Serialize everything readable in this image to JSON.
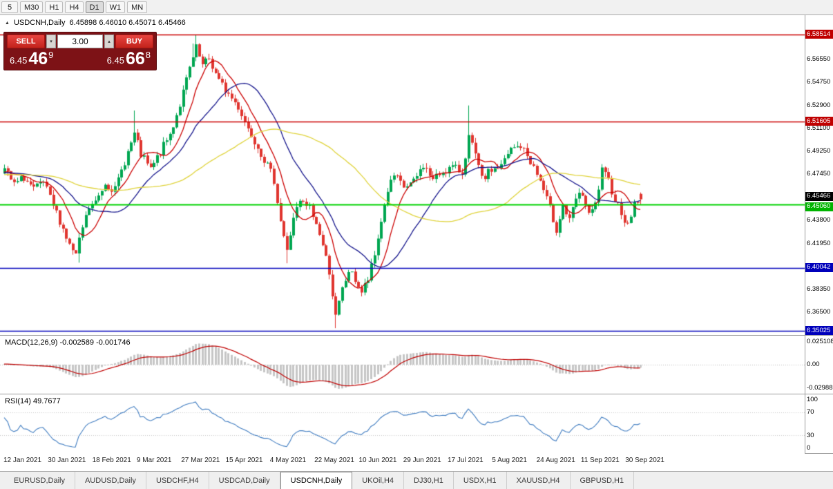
{
  "toolbar": {
    "timeframes": [
      {
        "label": "5",
        "active": false
      },
      {
        "label": "M30",
        "active": false
      },
      {
        "label": "H1",
        "active": false
      },
      {
        "label": "H4",
        "active": false
      },
      {
        "label": "D1",
        "active": true
      },
      {
        "label": "W1",
        "active": false
      },
      {
        "label": "MN",
        "active": false
      }
    ]
  },
  "chart_header": {
    "expand_icon": "▲",
    "title": "USDCNH,Daily",
    "ohlc": "6.45898 6.46010 6.45071 6.45466"
  },
  "trade_panel": {
    "sell_label": "SELL",
    "buy_label": "BUY",
    "volume": "3.00",
    "spinner_down": "▾",
    "spinner_up": "▴",
    "sell_price": {
      "prefix": "6.45",
      "big": "46",
      "sup": "9"
    },
    "buy_price": {
      "prefix": "6.45",
      "big": "66",
      "sup": "8"
    }
  },
  "price_axis": {
    "ticks": [
      {
        "label": "6.56550",
        "price": 6.5655
      },
      {
        "label": "6.54750",
        "price": 6.5475
      },
      {
        "label": "6.52900",
        "price": 6.529
      },
      {
        "label": "6.51100",
        "price": 6.511
      },
      {
        "label": "6.49250",
        "price": 6.4925
      },
      {
        "label": "6.47450",
        "price": 6.4745
      },
      {
        "label": "6.43800",
        "price": 6.438
      },
      {
        "label": "6.41950",
        "price": 6.4195
      },
      {
        "label": "6.38350",
        "price": 6.3835
      },
      {
        "label": "6.36500",
        "price": 6.365
      }
    ],
    "badges": [
      {
        "label": "6.58514",
        "price": 6.58514,
        "bg": "#c00000",
        "nudge": 0
      },
      {
        "label": "6.51605",
        "price": 6.51605,
        "bg": "#c00000",
        "nudge": 0
      },
      {
        "label": "6.45466",
        "price": 6.45466,
        "bg": "#000000",
        "nudge": -4
      },
      {
        "label": "6.45060",
        "price": 6.4506,
        "bg": "#00b400",
        "nudge": 4
      },
      {
        "label": "6.40042",
        "price": 6.40042,
        "bg": "#0000bb",
        "nudge": 0
      },
      {
        "label": "6.35025",
        "price": 6.35025,
        "bg": "#0000bb",
        "nudge": 0
      }
    ]
  },
  "hlines": [
    {
      "price": 6.58514,
      "color": "#cc0000",
      "width": 1.4
    },
    {
      "price": 6.51605,
      "color": "#cc0000",
      "width": 1.4
    },
    {
      "price": 6.4506,
      "color": "#00d400",
      "width": 2
    },
    {
      "price": 6.40042,
      "color": "#0000bb",
      "width": 1.4
    },
    {
      "price": 6.35025,
      "color": "#0000bb",
      "width": 1.4
    }
  ],
  "indicators": {
    "macd_label": "MACD(12,26,9) -0.002589 -0.001746",
    "macd_axis": [
      {
        "label": "0.025108",
        "offset": 3
      },
      {
        "label": "0.00",
        "offset": 36
      },
      {
        "label": "-0.02988",
        "offset": 70
      }
    ],
    "rsi_label": "RSI(14) 49.7677",
    "rsi_axis": [
      {
        "label": "100",
        "value": 100
      },
      {
        "label": "70",
        "value": 70
      },
      {
        "label": "30",
        "value": 30
      },
      {
        "label": "0",
        "value": 0
      }
    ],
    "rsi_levels": [
      70,
      30
    ]
  },
  "dates": [
    "12 Jan 2021",
    "30 Jan 2021",
    "18 Feb 2021",
    "9 Mar 2021",
    "27 Mar 2021",
    "15 Apr 2021",
    "4 May 2021",
    "22 May 2021",
    "10 Jun 2021",
    "29 Jun 2021",
    "17 Jul 2021",
    "5 Aug 2021",
    "24 Aug 2021",
    "11 Sep 2021",
    "30 Sep 2021"
  ],
  "tabs": [
    {
      "label": "EURUSD,Daily",
      "active": false
    },
    {
      "label": "AUDUSD,Daily",
      "active": false
    },
    {
      "label": "USDCHF,H4",
      "active": false
    },
    {
      "label": "USDCAD,Daily",
      "active": false
    },
    {
      "label": "USDCNH,Daily",
      "active": true
    },
    {
      "label": "UKOil,H4",
      "active": false
    },
    {
      "label": "DJ30,H1",
      "active": false
    },
    {
      "label": "USDX,H1",
      "active": false
    },
    {
      "label": "XAUUSD,H4",
      "active": false
    },
    {
      "label": "GBPUSD,H1",
      "active": false
    }
  ],
  "chart_data": {
    "type": "candlestick",
    "symbol": "USDCNH",
    "timeframe": "Daily",
    "price_range": [
      6.3472,
      6.6005
    ],
    "num_candles": 197,
    "seed": 7,
    "close_waypoints": [
      [
        0,
        6.478
      ],
      [
        3,
        6.466
      ],
      [
        6,
        6.472
      ],
      [
        9,
        6.462
      ],
      [
        12,
        6.468
      ],
      [
        14,
        6.455
      ],
      [
        17,
        6.438
      ],
      [
        20,
        6.418
      ],
      [
        22,
        6.41
      ],
      [
        24,
        6.432
      ],
      [
        26,
        6.448
      ],
      [
        28,
        6.452
      ],
      [
        31,
        6.468
      ],
      [
        34,
        6.462
      ],
      [
        37,
        6.485
      ],
      [
        40,
        6.506
      ],
      [
        42,
        6.49
      ],
      [
        45,
        6.478
      ],
      [
        48,
        6.492
      ],
      [
        51,
        6.506
      ],
      [
        54,
        6.53
      ],
      [
        57,
        6.558
      ],
      [
        59,
        6.574
      ],
      [
        61,
        6.56
      ],
      [
        63,
        6.566
      ],
      [
        66,
        6.548
      ],
      [
        69,
        6.538
      ],
      [
        72,
        6.528
      ],
      [
        75,
        6.511
      ],
      [
        78,
        6.497
      ],
      [
        81,
        6.481
      ],
      [
        83,
        6.47
      ],
      [
        85,
        6.438
      ],
      [
        87,
        6.413
      ],
      [
        89,
        6.441
      ],
      [
        91,
        6.452
      ],
      [
        94,
        6.448
      ],
      [
        97,
        6.428
      ],
      [
        100,
        6.398
      ],
      [
        102,
        6.361
      ],
      [
        104,
        6.383
      ],
      [
        106,
        6.398
      ],
      [
        108,
        6.391
      ],
      [
        110,
        6.381
      ],
      [
        112,
        6.391
      ],
      [
        114,
        6.41
      ],
      [
        116,
        6.438
      ],
      [
        118,
        6.462
      ],
      [
        120,
        6.473
      ],
      [
        123,
        6.464
      ],
      [
        126,
        6.468
      ],
      [
        129,
        6.482
      ],
      [
        132,
        6.47
      ],
      [
        135,
        6.477
      ],
      [
        138,
        6.48
      ],
      [
        141,
        6.476
      ],
      [
        143,
        6.504
      ],
      [
        145,
        6.489
      ],
      [
        147,
        6.47
      ],
      [
        150,
        6.478
      ],
      [
        153,
        6.481
      ],
      [
        156,
        6.494
      ],
      [
        159,
        6.497
      ],
      [
        162,
        6.485
      ],
      [
        165,
        6.469
      ],
      [
        168,
        6.447
      ],
      [
        170,
        6.431
      ],
      [
        172,
        6.45
      ],
      [
        174,
        6.437
      ],
      [
        176,
        6.455
      ],
      [
        178,
        6.459
      ],
      [
        180,
        6.441
      ],
      [
        182,
        6.45
      ],
      [
        184,
        6.477
      ],
      [
        186,
        6.469
      ],
      [
        188,
        6.455
      ],
      [
        190,
        6.445
      ],
      [
        192,
        6.433
      ],
      [
        194,
        6.452
      ],
      [
        196,
        6.455
      ]
    ],
    "spikes": [
      {
        "i": 23,
        "low": 6.4045
      },
      {
        "i": 40,
        "high": 6.525
      },
      {
        "i": 58,
        "high": 6.578
      },
      {
        "i": 59,
        "high": 6.5851
      },
      {
        "i": 87,
        "low": 6.404
      },
      {
        "i": 102,
        "low": 6.3526
      },
      {
        "i": 143,
        "high": 6.529
      }
    ],
    "last_candle": {
      "open": 6.45898,
      "high": 6.4601,
      "low": 6.45071,
      "close": 6.45466
    },
    "up_color": "#00A651",
    "down_color": "#E0352F",
    "ma": [
      {
        "period": 9,
        "color": "#cc0000"
      },
      {
        "period": 22,
        "color": "#14148c"
      },
      {
        "period": 55,
        "color": "#e0d43c"
      }
    ],
    "macd": {
      "fast": 12,
      "slow": 26,
      "signal": 9,
      "current": [
        -0.002589,
        -0.001746
      ],
      "bar_color": "#c6c6c6",
      "signal_color": "#c00000"
    },
    "rsi": {
      "period": 14,
      "current": 49.7677,
      "line_color": "#3f7cc1"
    }
  }
}
